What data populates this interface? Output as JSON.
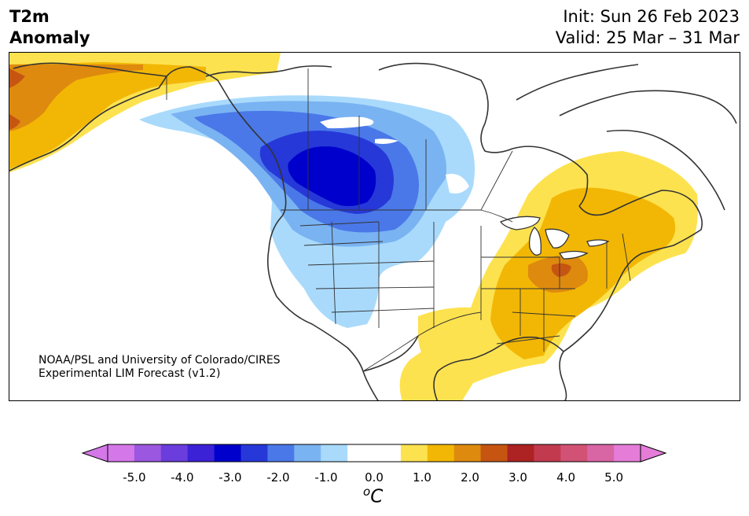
{
  "title": {
    "left_line1": "T2m",
    "left_line2": "Anomaly",
    "right_line1": "Init: Sun 26 Feb 2023",
    "right_line2": "Valid: 25 Mar – 31 Mar"
  },
  "credit": {
    "line1": "NOAA/PSL and University of Colorado/CIRES",
    "line2": "Experimental LIM Forecast (v1.2)"
  },
  "colorbar": {
    "unit_base": "C",
    "unit_sup": "o",
    "ticks": [
      "-5.0",
      "-4.0",
      "-3.0",
      "-2.0",
      "-1.0",
      "0.0",
      "1.0",
      "2.0",
      "3.0",
      "4.0",
      "5.0"
    ],
    "colors": [
      "#d477e8",
      "#9b57e0",
      "#6a3ddc",
      "#3b22d6",
      "#0000cc",
      "#2638d8",
      "#4a78e8",
      "#7ab3f2",
      "#a9dafc",
      "#ffffff",
      "#ffffff",
      "#fde24f",
      "#f2b705",
      "#de8a0e",
      "#c65512",
      "#ad2222",
      "#c23a4e",
      "#d15275",
      "#d865a4",
      "#e57cd8"
    ],
    "under_color": "#d477e8",
    "over_color": "#e57cd8"
  },
  "map": {
    "region": "North America",
    "variable": "2-meter temperature anomaly"
  }
}
